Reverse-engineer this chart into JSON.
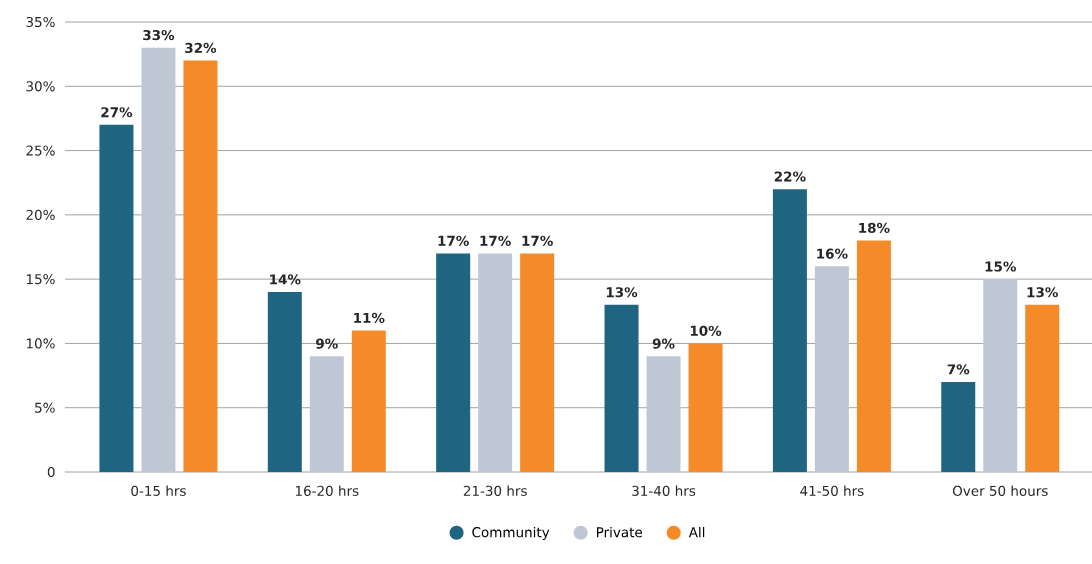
{
  "chart_data": {
    "type": "bar",
    "categories": [
      "0-15 hrs",
      "16-20 hrs",
      "21-30 hrs",
      "31-40 hrs",
      "41-50 hrs",
      "Over 50 hours"
    ],
    "series": [
      {
        "name": "Community",
        "color": "#1f6480",
        "values": [
          27,
          14,
          17,
          13,
          22,
          7
        ],
        "value_labels": [
          "27%",
          "14%",
          "17%",
          "13%",
          "22%",
          "7%"
        ]
      },
      {
        "name": "Private",
        "color": "#c0c7d4",
        "values": [
          33,
          9,
          17,
          9,
          16,
          15
        ],
        "value_labels": [
          "33%",
          "9%",
          "17%",
          "9%",
          "16%",
          "15%"
        ]
      },
      {
        "name": "All",
        "color": "#f58a28",
        "values": [
          32,
          11,
          17,
          10,
          18,
          13
        ],
        "value_labels": [
          "32%",
          "11%",
          "17%",
          "10%",
          "18%",
          "13%"
        ]
      }
    ],
    "ylim": [
      0,
      35
    ],
    "yticks": [
      {
        "value": 0,
        "label": "0"
      },
      {
        "value": 5,
        "label": "5%"
      },
      {
        "value": 10,
        "label": "10%"
      },
      {
        "value": 15,
        "label": "15%"
      },
      {
        "value": 20,
        "label": "20%"
      },
      {
        "value": 25,
        "label": "25%"
      },
      {
        "value": 30,
        "label": "30%"
      },
      {
        "value": 35,
        "label": "35%"
      }
    ],
    "grid": "y",
    "legend": "bottom"
  }
}
